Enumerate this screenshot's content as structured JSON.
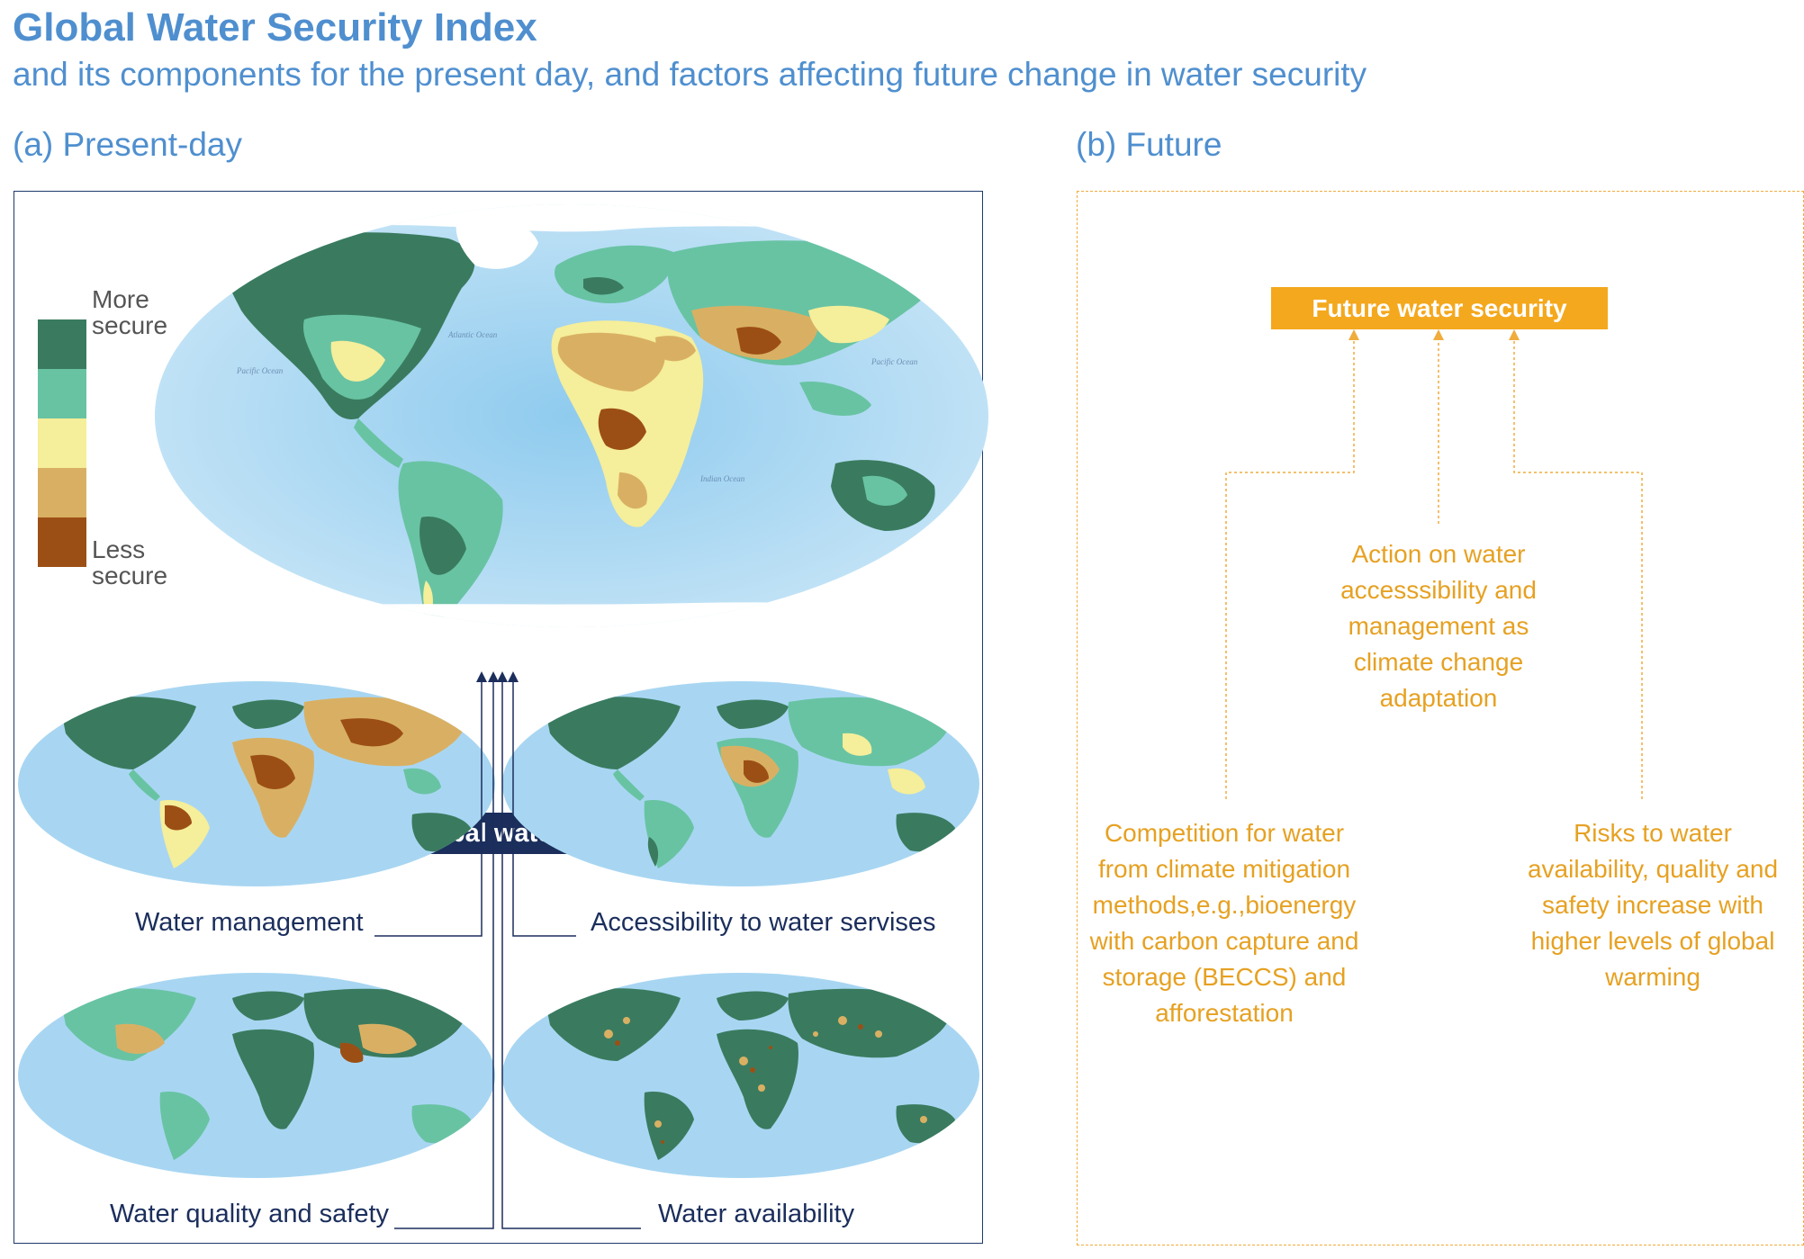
{
  "title": "Global Water Security Index",
  "subtitle": "and its components for the present day, and factors affecting future change in water security",
  "panel_a": {
    "label": "(a) Present-day",
    "legend": {
      "top_label": "More secure",
      "bottom_label": "Less secure",
      "colors": [
        "#3a7b5f",
        "#68c3a3",
        "#f5ee9a",
        "#d9b063",
        "#9c4f15"
      ]
    },
    "aggregated_label": "Aggregated global water security index",
    "components": [
      {
        "label": "Water management"
      },
      {
        "label": "Accessibility to water servises"
      },
      {
        "label": "Water quality and safety"
      },
      {
        "label": "Water availability"
      }
    ],
    "ocean_labels": {
      "pacific": "Pacific Ocean",
      "atlantic": "Atlantic Ocean",
      "indian": "Indian Ocean"
    }
  },
  "panel_b": {
    "label": "(b) Future",
    "future_box": "Future water security",
    "factors": {
      "center": "Action on water accesssibility and management as climate change adaptation",
      "left": "Competition for water from climate mitigation methods,e.g.,bioenergy with carbon capture and storage (BECCS) and afforestation",
      "right": "Risks to water availability, quality and safety increase with higher levels of global warming"
    }
  },
  "colors": {
    "accent_blue": "#4f8fcf",
    "navy": "#1b2e5c",
    "orange": "#f4a81d",
    "ocean": "#a8d6f2",
    "ice": "#ffffff"
  }
}
